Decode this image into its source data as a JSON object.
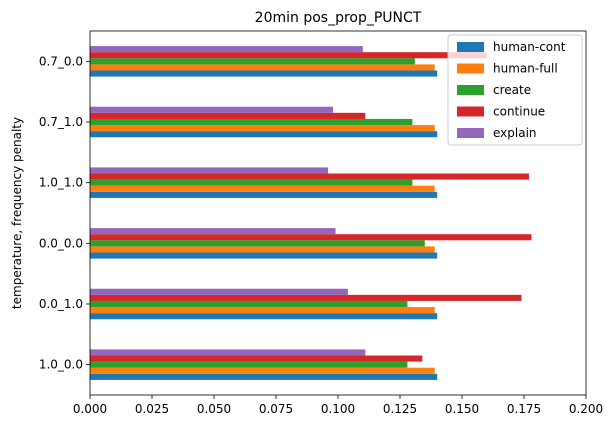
{
  "chart_data": {
    "type": "bar",
    "orientation": "horizontal",
    "title": "20min pos_prop_PUNCT",
    "xlabel": "",
    "ylabel": "temperature, frequency penalty",
    "xlim": [
      0,
      0.2
    ],
    "xticks": [
      "0.000",
      "0.025",
      "0.050",
      "0.075",
      "0.100",
      "0.125",
      "0.150",
      "0.175",
      "0.200"
    ],
    "categories": [
      "1.0_0.0",
      "0.0_1.0",
      "0.0_0.0",
      "1.0_1.0",
      "0.7_1.0",
      "0.7_0.0"
    ],
    "grid": false,
    "legend_position": "top-right",
    "series": [
      {
        "name": "human-cont",
        "color": "#1f77b4",
        "values": [
          0.14,
          0.14,
          0.14,
          0.14,
          0.14,
          0.14
        ]
      },
      {
        "name": "human-full",
        "color": "#ff7f0e",
        "values": [
          0.139,
          0.139,
          0.139,
          0.139,
          0.139,
          0.139
        ]
      },
      {
        "name": "create",
        "color": "#2ca02c",
        "values": [
          0.128,
          0.128,
          0.135,
          0.13,
          0.13,
          0.131
        ]
      },
      {
        "name": "continue",
        "color": "#d62728",
        "values": [
          0.134,
          0.174,
          0.178,
          0.177,
          0.111,
          0.16
        ]
      },
      {
        "name": "explain",
        "color": "#9467bd",
        "values": [
          0.111,
          0.104,
          0.099,
          0.096,
          0.098,
          0.11
        ]
      }
    ]
  }
}
